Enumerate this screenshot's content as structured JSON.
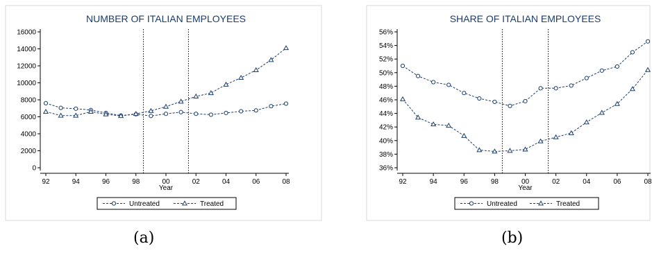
{
  "colors": {
    "series": "#1a3d6b",
    "axis": "#000000",
    "frame": "#d9d9d9",
    "vline": "#000000"
  },
  "captions": [
    "(a)",
    "(b)"
  ],
  "chart_data": [
    {
      "type": "line",
      "title": "NUMBER OF ITALIAN EMPLOYEES",
      "xlabel": "Year",
      "ylabel": "",
      "x": [
        92,
        93,
        94,
        95,
        96,
        97,
        98,
        99,
        100,
        101,
        102,
        103,
        104,
        105,
        106,
        107,
        108
      ],
      "xticks": [
        92,
        94,
        96,
        98,
        100,
        102,
        104,
        106,
        108
      ],
      "xtick_labels": [
        "92",
        "94",
        "96",
        "98",
        "00",
        "02",
        "04",
        "06",
        "08"
      ],
      "xlim": [
        92,
        108
      ],
      "ylim": [
        0,
        16000
      ],
      "yticks": [
        0,
        2000,
        4000,
        6000,
        8000,
        10000,
        12000,
        14000,
        16000
      ],
      "ytick_labels": [
        "0",
        "2000",
        "4000",
        "6000",
        "8000",
        "10000",
        "12000",
        "14000",
        "16000"
      ],
      "vlines": [
        98.5,
        101.5
      ],
      "grid": false,
      "legend_position": "bottom",
      "series": [
        {
          "name": "Untreated",
          "marker": "circle",
          "values": [
            7600,
            7050,
            6950,
            6800,
            6450,
            6150,
            6300,
            6100,
            6350,
            6550,
            6350,
            6250,
            6450,
            6650,
            6750,
            7250,
            7550
          ]
        },
        {
          "name": "Treated",
          "marker": "triangle",
          "values": [
            6600,
            6150,
            6150,
            6600,
            6300,
            6100,
            6350,
            6700,
            7200,
            7800,
            8400,
            8800,
            9800,
            10600,
            11500,
            12700,
            14100
          ]
        }
      ]
    },
    {
      "type": "line",
      "title": "SHARE OF ITALIAN EMPLOYEES",
      "xlabel": "Year",
      "ylabel": "",
      "x": [
        92,
        93,
        94,
        95,
        96,
        97,
        98,
        99,
        100,
        101,
        102,
        103,
        104,
        105,
        106,
        107,
        108
      ],
      "xticks": [
        92,
        94,
        96,
        98,
        100,
        102,
        104,
        106,
        108
      ],
      "xtick_labels": [
        "92",
        "94",
        "96",
        "98",
        "00",
        "02",
        "04",
        "06",
        "08"
      ],
      "xlim": [
        92,
        108
      ],
      "ylim": [
        36,
        56
      ],
      "yticks": [
        36,
        38,
        40,
        42,
        44,
        46,
        48,
        50,
        52,
        54,
        56
      ],
      "ytick_labels": [
        "36%",
        "38%",
        "40%",
        "42%",
        "44%",
        "46%",
        "48%",
        "50%",
        "52%",
        "54%",
        "56%"
      ],
      "vlines": [
        98.5,
        101.5
      ],
      "grid": false,
      "legend_position": "bottom",
      "series": [
        {
          "name": "Untreated",
          "marker": "circle",
          "values": [
            51.0,
            49.5,
            48.6,
            48.2,
            47.0,
            46.2,
            45.7,
            45.1,
            45.8,
            47.7,
            47.7,
            48.1,
            49.2,
            50.3,
            50.9,
            53.0,
            54.6
          ]
        },
        {
          "name": "Treated",
          "marker": "triangle",
          "values": [
            46.1,
            43.4,
            42.4,
            42.2,
            40.7,
            38.6,
            38.4,
            38.5,
            38.7,
            39.9,
            40.5,
            41.1,
            42.7,
            44.1,
            45.4,
            47.6,
            50.4
          ]
        }
      ]
    }
  ]
}
